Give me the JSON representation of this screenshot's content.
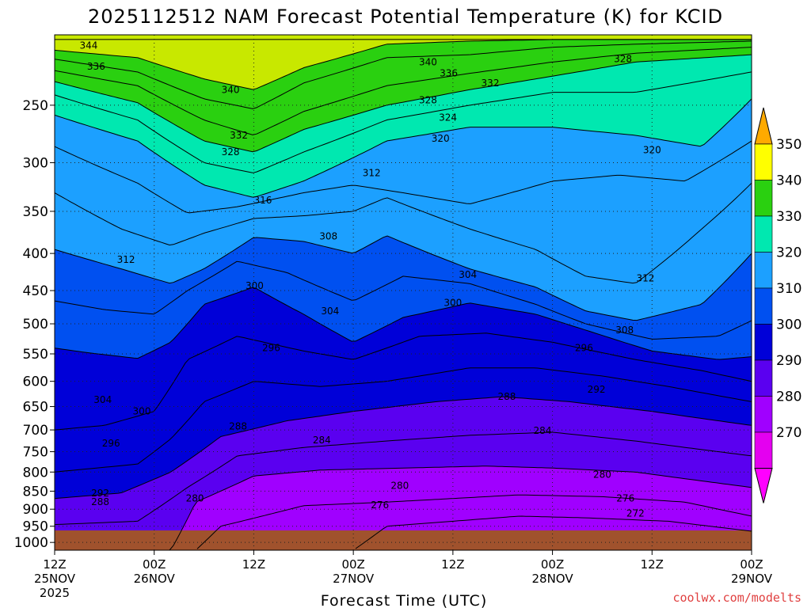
{
  "chart_data": {
    "type": "contour",
    "title": "2025112512 NAM Forecast Potential Temperature (K) for KCID",
    "xlabel": "Forecast Time (UTC)",
    "ylabel": "",
    "credit": "coolwx.com/modelts",
    "x_ticks": [
      {
        "hours": 0,
        "l1": "12Z",
        "l2": "25NOV",
        "l3": "2025"
      },
      {
        "hours": 12,
        "l1": "00Z",
        "l2": "26NOV",
        "l3": ""
      },
      {
        "hours": 24,
        "l1": "12Z",
        "l2": "",
        "l3": ""
      },
      {
        "hours": 36,
        "l1": "00Z",
        "l2": "27NOV",
        "l3": ""
      },
      {
        "hours": 48,
        "l1": "12Z",
        "l2": "",
        "l3": ""
      },
      {
        "hours": 60,
        "l1": "00Z",
        "l2": "28NOV",
        "l3": ""
      },
      {
        "hours": 72,
        "l1": "12Z",
        "l2": "",
        "l3": ""
      },
      {
        "hours": 84,
        "l1": "00Z",
        "l2": "29NOV",
        "l3": ""
      }
    ],
    "xlim_hours": [
      0,
      84
    ],
    "y_ticks": [
      250,
      300,
      350,
      400,
      450,
      500,
      550,
      600,
      650,
      700,
      750,
      800,
      850,
      900,
      950,
      1000
    ],
    "ylim_hpa": [
      200,
      1025
    ],
    "y_scale": "log",
    "grid": true,
    "colorbar": {
      "ticks": [
        350,
        340,
        330,
        320,
        310,
        300,
        290,
        280,
        270
      ],
      "levels": [
        260,
        270,
        280,
        290,
        300,
        310,
        320,
        330,
        340,
        350,
        360
      ],
      "colors": [
        "#ff00ff",
        "#e400f0",
        "#a000ff",
        "#5a00f0",
        "#0000d8",
        "#0050f0",
        "#1ca0ff",
        "#00e8b0",
        "#2ad010",
        "#c8e800",
        "#ffff00",
        "#ffc000",
        "#ff9a00"
      ]
    },
    "contour_interval": 4,
    "contours": [
      {
        "theta": 344,
        "anchors": [
          [
            0,
            203
          ],
          [
            10,
            203
          ],
          [
            18,
            203
          ],
          [
            26,
            203
          ],
          [
            36,
            203
          ],
          [
            46,
            203
          ],
          [
            56,
            203
          ],
          [
            70,
            203
          ],
          [
            84,
            203
          ]
        ]
      },
      {
        "theta": 340,
        "anchors": [
          [
            0,
            210
          ],
          [
            10,
            215
          ],
          [
            18,
            230
          ],
          [
            24,
            238
          ],
          [
            30,
            222
          ],
          [
            40,
            206
          ],
          [
            50,
            204
          ],
          [
            60,
            203
          ],
          [
            70,
            203
          ],
          [
            84,
            203
          ]
        ]
      },
      {
        "theta": 336,
        "anchors": [
          [
            0,
            216
          ],
          [
            10,
            225
          ],
          [
            18,
            245
          ],
          [
            24,
            253
          ],
          [
            30,
            233
          ],
          [
            40,
            215
          ],
          [
            50,
            213
          ],
          [
            60,
            208
          ],
          [
            70,
            206
          ],
          [
            84,
            204
          ]
        ]
      },
      {
        "theta": 332,
        "anchors": [
          [
            0,
            224
          ],
          [
            10,
            235
          ],
          [
            18,
            262
          ],
          [
            24,
            275
          ],
          [
            30,
            255
          ],
          [
            40,
            235
          ],
          [
            50,
            226
          ],
          [
            60,
            218
          ],
          [
            70,
            212
          ],
          [
            84,
            208
          ]
        ]
      },
      {
        "theta": 328,
        "anchors": [
          [
            0,
            232
          ],
          [
            10,
            248
          ],
          [
            18,
            280
          ],
          [
            24,
            290
          ],
          [
            30,
            270
          ],
          [
            40,
            250
          ],
          [
            50,
            238
          ],
          [
            60,
            228
          ],
          [
            70,
            218
          ],
          [
            84,
            213
          ]
        ]
      },
      {
        "theta": 324,
        "anchors": [
          [
            0,
            242
          ],
          [
            10,
            262
          ],
          [
            18,
            300
          ],
          [
            24,
            310
          ],
          [
            30,
            290
          ],
          [
            40,
            262
          ],
          [
            50,
            250
          ],
          [
            60,
            240
          ],
          [
            70,
            240
          ],
          [
            84,
            225
          ]
        ]
      },
      {
        "theta": 320,
        "anchors": [
          [
            0,
            258
          ],
          [
            10,
            280
          ],
          [
            18,
            322
          ],
          [
            24,
            335
          ],
          [
            30,
            318
          ],
          [
            40,
            280
          ],
          [
            50,
            268
          ],
          [
            60,
            268
          ],
          [
            70,
            275
          ],
          [
            78,
            285
          ],
          [
            84,
            245
          ]
        ]
      },
      {
        "theta": 316,
        "anchors": [
          [
            0,
            285
          ],
          [
            10,
            320
          ],
          [
            16,
            352
          ],
          [
            22,
            345
          ],
          [
            30,
            330
          ],
          [
            36,
            322
          ],
          [
            42,
            330
          ],
          [
            50,
            342
          ],
          [
            60,
            318
          ],
          [
            68,
            312
          ],
          [
            76,
            318
          ],
          [
            84,
            280
          ]
        ]
      },
      {
        "theta": 312,
        "anchors": [
          [
            0,
            330
          ],
          [
            8,
            370
          ],
          [
            14,
            390
          ],
          [
            18,
            375
          ],
          [
            24,
            358
          ],
          [
            30,
            355
          ],
          [
            36,
            350
          ],
          [
            40,
            335
          ],
          [
            50,
            370
          ],
          [
            58,
            395
          ],
          [
            64,
            430
          ],
          [
            70,
            440
          ],
          [
            78,
            370
          ],
          [
            84,
            320
          ]
        ]
      },
      {
        "theta": 308,
        "anchors": [
          [
            0,
            395
          ],
          [
            8,
            420
          ],
          [
            14,
            440
          ],
          [
            18,
            420
          ],
          [
            24,
            380
          ],
          [
            30,
            385
          ],
          [
            36,
            400
          ],
          [
            40,
            378
          ],
          [
            50,
            420
          ],
          [
            58,
            445
          ],
          [
            64,
            480
          ],
          [
            70,
            495
          ],
          [
            78,
            470
          ],
          [
            84,
            400
          ]
        ]
      },
      {
        "theta": 304,
        "anchors": [
          [
            0,
            465
          ],
          [
            6,
            478
          ],
          [
            12,
            485
          ],
          [
            16,
            450
          ],
          [
            22,
            410
          ],
          [
            28,
            425
          ],
          [
            36,
            465
          ],
          [
            42,
            430
          ],
          [
            50,
            440
          ],
          [
            58,
            470
          ],
          [
            64,
            500
          ],
          [
            72,
            525
          ],
          [
            80,
            520
          ],
          [
            84,
            495
          ]
        ]
      },
      {
        "theta": 300,
        "anchors": [
          [
            0,
            540
          ],
          [
            4,
            548
          ],
          [
            10,
            558
          ],
          [
            14,
            530
          ],
          [
            18,
            470
          ],
          [
            24,
            445
          ],
          [
            30,
            485
          ],
          [
            36,
            530
          ],
          [
            42,
            490
          ],
          [
            50,
            468
          ],
          [
            58,
            485
          ],
          [
            64,
            510
          ],
          [
            72,
            545
          ],
          [
            80,
            560
          ],
          [
            84,
            555
          ]
        ]
      },
      {
        "theta": 296,
        "anchors": [
          [
            0,
            700
          ],
          [
            6,
            690
          ],
          [
            12,
            660
          ],
          [
            16,
            560
          ],
          [
            22,
            520
          ],
          [
            30,
            545
          ],
          [
            36,
            560
          ],
          [
            44,
            520
          ],
          [
            52,
            515
          ],
          [
            60,
            530
          ],
          [
            70,
            560
          ],
          [
            78,
            580
          ],
          [
            84,
            600
          ]
        ]
      },
      {
        "theta": 292,
        "anchors": [
          [
            0,
            800
          ],
          [
            10,
            780
          ],
          [
            14,
            720
          ],
          [
            18,
            640
          ],
          [
            24,
            600
          ],
          [
            32,
            610
          ],
          [
            40,
            600
          ],
          [
            50,
            575
          ],
          [
            58,
            575
          ],
          [
            66,
            590
          ],
          [
            74,
            610
          ],
          [
            84,
            640
          ]
        ]
      },
      {
        "theta": 288,
        "anchors": [
          [
            0,
            870
          ],
          [
            8,
            855
          ],
          [
            14,
            800
          ],
          [
            20,
            715
          ],
          [
            28,
            680
          ],
          [
            36,
            660
          ],
          [
            46,
            640
          ],
          [
            54,
            630
          ],
          [
            62,
            640
          ],
          [
            72,
            660
          ],
          [
            84,
            690
          ]
        ]
      },
      {
        "theta": 284,
        "anchors": [
          [
            0,
            945
          ],
          [
            10,
            935
          ],
          [
            16,
            840
          ],
          [
            22,
            760
          ],
          [
            30,
            740
          ],
          [
            40,
            725
          ],
          [
            50,
            712
          ],
          [
            60,
            705
          ],
          [
            70,
            725
          ],
          [
            84,
            760
          ]
        ]
      },
      {
        "theta": 280,
        "anchors": [
          [
            0,
            1025
          ],
          [
            14,
            1025
          ],
          [
            17,
            880
          ],
          [
            24,
            810
          ],
          [
            32,
            795
          ],
          [
            42,
            790
          ],
          [
            52,
            785
          ],
          [
            60,
            790
          ],
          [
            70,
            800
          ],
          [
            84,
            840
          ]
        ]
      },
      {
        "theta": 276,
        "anchors": [
          [
            17,
            1025
          ],
          [
            20,
            950
          ],
          [
            30,
            890
          ],
          [
            40,
            880
          ],
          [
            48,
            870
          ],
          [
            56,
            860
          ],
          [
            66,
            865
          ],
          [
            76,
            880
          ],
          [
            84,
            920
          ]
        ]
      },
      {
        "theta": 272,
        "anchors": [
          [
            36,
            1025
          ],
          [
            40,
            950
          ],
          [
            48,
            935
          ],
          [
            56,
            920
          ],
          [
            64,
            925
          ],
          [
            74,
            935
          ],
          [
            84,
            965
          ]
        ]
      }
    ],
    "labels": [
      {
        "text": "344",
        "hours": 4.1,
        "hpa": 207
      },
      {
        "text": "336",
        "hours": 5.0,
        "hpa": 221
      },
      {
        "text": "340",
        "hours": 21.2,
        "hpa": 238
      },
      {
        "text": "332",
        "hours": 22.2,
        "hpa": 275
      },
      {
        "text": "328",
        "hours": 21.2,
        "hpa": 290
      },
      {
        "text": "340",
        "hours": 45.0,
        "hpa": 218
      },
      {
        "text": "336",
        "hours": 47.5,
        "hpa": 226
      },
      {
        "text": "332",
        "hours": 52.5,
        "hpa": 233
      },
      {
        "text": "328",
        "hours": 45.0,
        "hpa": 246
      },
      {
        "text": "324",
        "hours": 47.4,
        "hpa": 260
      },
      {
        "text": "320",
        "hours": 46.5,
        "hpa": 278
      },
      {
        "text": "312",
        "hours": 38.2,
        "hpa": 310
      },
      {
        "text": "328",
        "hours": 68.5,
        "hpa": 216
      },
      {
        "text": "320",
        "hours": 72.0,
        "hpa": 288
      },
      {
        "text": "316",
        "hours": 25.1,
        "hpa": 338
      },
      {
        "text": "312",
        "hours": 8.6,
        "hpa": 408
      },
      {
        "text": "308",
        "hours": 33.0,
        "hpa": 379
      },
      {
        "text": "304",
        "hours": 49.8,
        "hpa": 428
      },
      {
        "text": "312",
        "hours": 71.2,
        "hpa": 433
      },
      {
        "text": "304",
        "hours": 33.2,
        "hpa": 480
      },
      {
        "text": "300",
        "hours": 24.1,
        "hpa": 443
      },
      {
        "text": "300",
        "hours": 48.0,
        "hpa": 468
      },
      {
        "text": "308",
        "hours": 68.7,
        "hpa": 510
      },
      {
        "text": "296",
        "hours": 26.1,
        "hpa": 540
      },
      {
        "text": "296",
        "hours": 63.8,
        "hpa": 540
      },
      {
        "text": "304",
        "hours": 5.8,
        "hpa": 636
      },
      {
        "text": "300",
        "hours": 10.5,
        "hpa": 660
      },
      {
        "text": "292",
        "hours": 65.3,
        "hpa": 616
      },
      {
        "text": "288",
        "hours": 54.5,
        "hpa": 630
      },
      {
        "text": "296",
        "hours": 6.8,
        "hpa": 730
      },
      {
        "text": "288",
        "hours": 22.1,
        "hpa": 692
      },
      {
        "text": "284",
        "hours": 32.2,
        "hpa": 723
      },
      {
        "text": "284",
        "hours": 58.8,
        "hpa": 702
      },
      {
        "text": "292",
        "hours": 5.5,
        "hpa": 855
      },
      {
        "text": "288",
        "hours": 5.5,
        "hpa": 880
      },
      {
        "text": "280",
        "hours": 16.9,
        "hpa": 870
      },
      {
        "text": "280",
        "hours": 41.6,
        "hpa": 835
      },
      {
        "text": "280",
        "hours": 66.0,
        "hpa": 807
      },
      {
        "text": "276",
        "hours": 39.2,
        "hpa": 888
      },
      {
        "text": "276",
        "hours": 68.8,
        "hpa": 870
      },
      {
        "text": "272",
        "hours": 70.0,
        "hpa": 912
      }
    ]
  }
}
